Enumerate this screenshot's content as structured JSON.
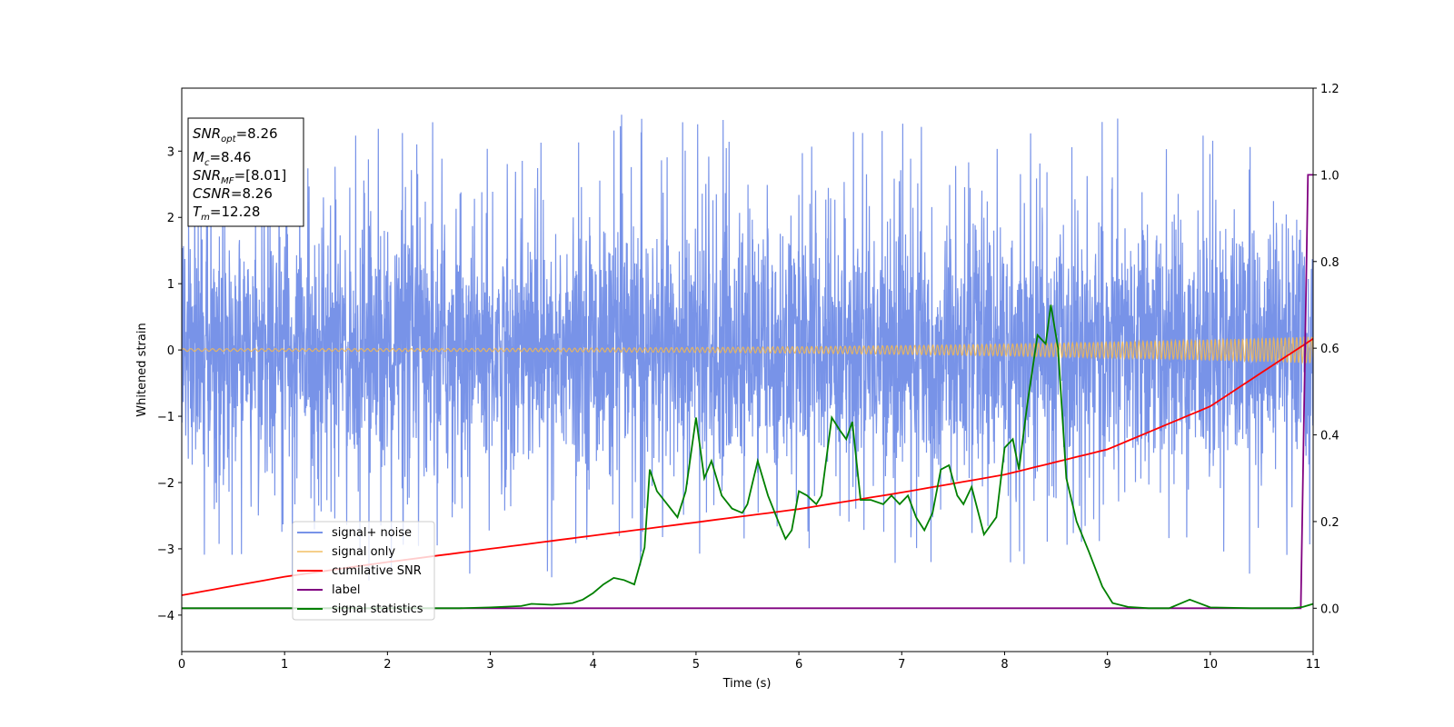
{
  "chart_data": {
    "type": "line",
    "xlabel": "Time (s)",
    "ylabel": "Whitened strain",
    "xlim": [
      0,
      11
    ],
    "ylim": [
      -4.55,
      3.95
    ],
    "y2lim": [
      -0.1,
      1.2
    ],
    "grid": false,
    "legend_placement": "lower-left",
    "x_ticks": [
      "0",
      "1",
      "2",
      "3",
      "4",
      "5",
      "6",
      "7",
      "8",
      "9",
      "10",
      "11"
    ],
    "y_ticks": [
      "3",
      "2",
      "1",
      "0",
      "−1",
      "−2",
      "−3",
      "−4"
    ],
    "y2_ticks": [
      "1.2",
      "1.0",
      "0.8",
      "0.6",
      "0.4",
      "0.2",
      "0.0"
    ],
    "info_box": {
      "snr_opt": {
        "main": "SNR",
        "sub": "opt",
        "value": "=8.26"
      },
      "mc": {
        "main": "M",
        "sub": "c",
        "value": "=8.46"
      },
      "snr_mf": {
        "main": "SNR",
        "sub": "MF",
        "value": "=[8.01]"
      },
      "csnr": {
        "main": "CSNR",
        "value": "=8.26"
      },
      "tm": {
        "main": "T",
        "sub": "m",
        "value": "=12.28"
      }
    },
    "series": [
      {
        "name": "signal+ noise",
        "color": "#7893e8",
        "axis": "left",
        "envelope_range": [
          -2.0,
          2.2
        ],
        "spike_range": [
          -4.15,
          3.55
        ]
      },
      {
        "name": "signal only",
        "color": "#f5b84f",
        "axis": "left",
        "amplitude_start": 0.02,
        "amplitude_end": 0.2
      },
      {
        "name": "cumilative SNR",
        "color": "#ff0000",
        "axis": "left",
        "x": [
          0,
          1,
          2,
          3,
          4,
          5,
          6,
          7,
          8,
          9,
          10,
          11
        ],
        "y": [
          -3.7,
          -3.42,
          -3.2,
          -3.0,
          -2.8,
          -2.6,
          -2.4,
          -2.15,
          -1.88,
          -1.5,
          -0.85,
          0.17
        ]
      },
      {
        "name": "label",
        "color": "#800080",
        "axis": "right",
        "x": [
          0,
          10.88,
          10.95,
          11.0
        ],
        "y": [
          0.0,
          0.0,
          1.0,
          1.0
        ]
      },
      {
        "name": "signal statistics",
        "color": "#008000",
        "axis": "right",
        "x": [
          0,
          1,
          2,
          2.7,
          3.0,
          3.3,
          3.4,
          3.6,
          3.7,
          3.8,
          3.9,
          4.0,
          4.1,
          4.2,
          4.3,
          4.4,
          4.5,
          4.55,
          4.62,
          4.72,
          4.82,
          4.9,
          5.0,
          5.08,
          5.15,
          5.25,
          5.35,
          5.45,
          5.5,
          5.6,
          5.7,
          5.8,
          5.87,
          5.93,
          6.0,
          6.08,
          6.17,
          6.22,
          6.32,
          6.4,
          6.46,
          6.52,
          6.6,
          6.7,
          6.82,
          6.9,
          6.98,
          7.06,
          7.14,
          7.22,
          7.3,
          7.38,
          7.46,
          7.54,
          7.6,
          7.68,
          7.8,
          7.92,
          8.0,
          8.08,
          8.14,
          8.22,
          8.32,
          8.4,
          8.45,
          8.52,
          8.6,
          8.7,
          8.82,
          8.95,
          9.05,
          9.2,
          9.4,
          9.6,
          9.8,
          10.0,
          10.4,
          10.8,
          10.9,
          11.0
        ],
        "y": [
          0.0,
          0.0,
          0.0,
          0.0,
          0.002,
          0.005,
          0.01,
          0.008,
          0.01,
          0.012,
          0.02,
          0.035,
          0.055,
          0.07,
          0.065,
          0.055,
          0.14,
          0.32,
          0.27,
          0.24,
          0.21,
          0.27,
          0.44,
          0.3,
          0.34,
          0.26,
          0.23,
          0.22,
          0.24,
          0.34,
          0.26,
          0.2,
          0.16,
          0.18,
          0.27,
          0.26,
          0.24,
          0.26,
          0.44,
          0.41,
          0.39,
          0.43,
          0.25,
          0.25,
          0.24,
          0.26,
          0.24,
          0.26,
          0.21,
          0.18,
          0.22,
          0.32,
          0.33,
          0.26,
          0.24,
          0.28,
          0.17,
          0.21,
          0.37,
          0.39,
          0.32,
          0.47,
          0.63,
          0.61,
          0.7,
          0.6,
          0.3,
          0.2,
          0.13,
          0.05,
          0.012,
          0.003,
          0.0,
          0.0,
          0.02,
          0.002,
          0.0,
          0.0,
          0.003,
          0.01
        ]
      }
    ]
  }
}
